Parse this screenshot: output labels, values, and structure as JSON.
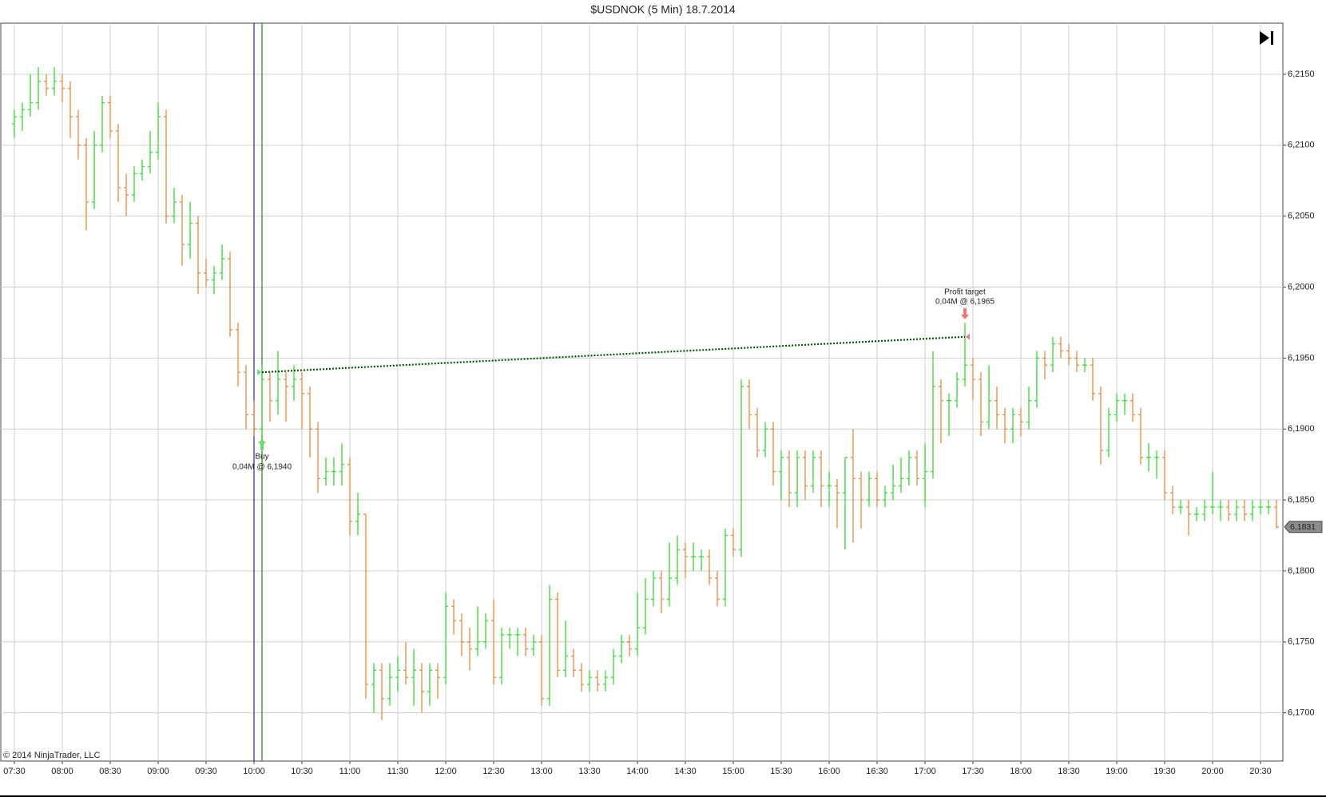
{
  "chart_data": {
    "type": "ohlc",
    "title": "$USDNOK (5 Min)  18.7.2014",
    "copyright": "© 2014 NinjaTrader, LLC",
    "up_color": "#33dd33",
    "down_color": "#e8883a",
    "grid": true,
    "ylim": [
      6.1666,
      6.2186
    ],
    "yticks": [
      {
        "value": 6.17,
        "label": "6,1700"
      },
      {
        "value": 6.175,
        "label": "6,1750"
      },
      {
        "value": 6.18,
        "label": "6,1800"
      },
      {
        "value": 6.185,
        "label": "6,1850"
      },
      {
        "value": 6.19,
        "label": "6,1900"
      },
      {
        "value": 6.195,
        "label": "6,1950"
      },
      {
        "value": 6.2,
        "label": "6,2000"
      },
      {
        "value": 6.205,
        "label": "6,2050"
      },
      {
        "value": 6.21,
        "label": "6,2100"
      },
      {
        "value": 6.215,
        "label": "6,2150"
      }
    ],
    "last_price": {
      "value": 6.1831,
      "label": "6,1831"
    },
    "vlines": [
      {
        "bar": 30,
        "color": "#2222cc"
      },
      {
        "bar": 31,
        "color": "#1a8a1a"
      }
    ],
    "entry": {
      "label": "Buy",
      "text": "0,04M @ 6,1940",
      "price": 6.194,
      "bar": 31,
      "color": "#66dd66"
    },
    "exit": {
      "label": "Profit target",
      "text": "0,04M @ 6,1965",
      "price": 6.1965,
      "bar": 119,
      "color": "#ee7777"
    },
    "trade_line_color": "#005500",
    "categories": [
      "07:30",
      null,
      null,
      null,
      null,
      null,
      "08:00",
      null,
      null,
      null,
      null,
      null,
      "08:30",
      null,
      null,
      null,
      null,
      null,
      "09:00",
      null,
      null,
      null,
      null,
      null,
      "09:30",
      null,
      null,
      null,
      null,
      null,
      "10:00",
      null,
      null,
      null,
      null,
      null,
      "10:30",
      null,
      null,
      null,
      null,
      null,
      "11:00",
      null,
      null,
      null,
      null,
      null,
      "11:30",
      null,
      null,
      null,
      null,
      null,
      "12:00",
      null,
      null,
      null,
      null,
      null,
      "12:30",
      null,
      null,
      null,
      null,
      null,
      "13:00",
      null,
      null,
      null,
      null,
      null,
      "13:30",
      null,
      null,
      null,
      null,
      null,
      "14:00",
      null,
      null,
      null,
      null,
      null,
      "14:30",
      null,
      null,
      null,
      null,
      null,
      "15:00",
      null,
      null,
      null,
      null,
      null,
      "15:30",
      null,
      null,
      null,
      null,
      null,
      "16:00",
      null,
      null,
      null,
      null,
      null,
      "16:30",
      null,
      null,
      null,
      null,
      null,
      "17:00",
      null,
      null,
      null,
      null,
      null,
      "17:30",
      null,
      null,
      null,
      null,
      null,
      "18:00",
      null,
      null,
      null,
      null,
      null,
      "18:30",
      null,
      null,
      null,
      null,
      null,
      "19:00",
      null,
      null,
      null,
      null,
      null,
      "19:30",
      null,
      null,
      null,
      null,
      null,
      "20:00",
      null,
      null,
      null,
      null,
      null,
      "20:30",
      null,
      null
    ],
    "bars": [
      [
        6.2115,
        6.2125,
        6.2105,
        6.212
      ],
      [
        6.212,
        6.213,
        6.211,
        6.2125
      ],
      [
        6.2125,
        6.215,
        6.212,
        6.213
      ],
      [
        6.213,
        6.2155,
        6.2125,
        6.2145
      ],
      [
        6.2145,
        6.215,
        6.2135,
        6.214
      ],
      [
        6.214,
        6.2155,
        6.2135,
        6.2145
      ],
      [
        6.2145,
        6.215,
        6.213,
        6.214
      ],
      [
        6.214,
        6.2145,
        6.2105,
        6.212
      ],
      [
        6.212,
        6.2125,
        6.209,
        6.21
      ],
      [
        6.21,
        6.2105,
        6.204,
        6.206
      ],
      [
        6.206,
        6.211,
        6.2055,
        6.21
      ],
      [
        6.21,
        6.2135,
        6.2095,
        6.213
      ],
      [
        6.213,
        6.2135,
        6.2105,
        6.211
      ],
      [
        6.211,
        6.2115,
        6.206,
        6.207
      ],
      [
        6.207,
        6.208,
        6.205,
        6.2065
      ],
      [
        6.2065,
        6.2085,
        6.206,
        6.208
      ],
      [
        6.208,
        6.209,
        6.2075,
        6.2085
      ],
      [
        6.2085,
        6.211,
        6.208,
        6.2095
      ],
      [
        6.2095,
        6.213,
        6.209,
        6.212
      ],
      [
        6.212,
        6.2125,
        6.2045,
        6.205
      ],
      [
        6.205,
        6.207,
        6.2045,
        6.206
      ],
      [
        6.206,
        6.2065,
        6.2015,
        6.203
      ],
      [
        6.203,
        6.206,
        6.202,
        6.2045
      ],
      [
        6.2045,
        6.205,
        6.1995,
        6.201
      ],
      [
        6.201,
        6.202,
        6.2,
        6.2005
      ],
      [
        6.2005,
        6.2015,
        6.1995,
        6.201
      ],
      [
        6.201,
        6.203,
        6.2005,
        6.202
      ],
      [
        6.202,
        6.2025,
        6.1965,
        6.197
      ],
      [
        6.197,
        6.1975,
        6.193,
        6.194
      ],
      [
        6.194,
        6.1945,
        6.19,
        6.191
      ],
      [
        6.191,
        6.192,
        6.1895,
        6.19
      ],
      [
        6.19,
        6.1945,
        6.1895,
        6.1935
      ],
      [
        6.1935,
        6.194,
        6.1905,
        6.192
      ],
      [
        6.192,
        6.1955,
        6.191,
        6.1935
      ],
      [
        6.1935,
        6.194,
        6.1905,
        6.193
      ],
      [
        6.193,
        6.1945,
        6.192,
        6.1935
      ],
      [
        6.1935,
        6.194,
        6.19,
        6.1925
      ],
      [
        6.1925,
        6.193,
        6.188,
        6.19
      ],
      [
        6.19,
        6.1905,
        6.1855,
        6.1865
      ],
      [
        6.1865,
        6.188,
        6.186,
        6.187
      ],
      [
        6.187,
        6.188,
        6.186,
        6.187
      ],
      [
        6.187,
        6.189,
        6.186,
        6.1875
      ],
      [
        6.1875,
        6.188,
        6.1825,
        6.1835
      ],
      [
        6.1835,
        6.1855,
        6.1825,
        6.184
      ],
      [
        6.184,
        6.184,
        6.171,
        6.172
      ],
      [
        6.172,
        6.1735,
        6.17,
        6.173
      ],
      [
        6.173,
        6.1735,
        6.1695,
        6.171
      ],
      [
        6.171,
        6.1735,
        6.1705,
        6.1725
      ],
      [
        6.1725,
        6.174,
        6.1715,
        6.173
      ],
      [
        6.173,
        6.175,
        6.172,
        6.1725
      ],
      [
        6.1725,
        6.1745,
        6.1705,
        6.173
      ],
      [
        6.173,
        6.1735,
        6.17,
        6.1715
      ],
      [
        6.1715,
        6.1735,
        6.1705,
        6.173
      ],
      [
        6.173,
        6.1735,
        6.171,
        6.1725
      ],
      [
        6.1725,
        6.1785,
        6.172,
        6.1775
      ],
      [
        6.1775,
        6.178,
        6.1755,
        6.1765
      ],
      [
        6.1765,
        6.177,
        6.174,
        6.175
      ],
      [
        6.175,
        6.176,
        6.173,
        6.1745
      ],
      [
        6.1745,
        6.1775,
        6.174,
        6.175
      ],
      [
        6.175,
        6.177,
        6.1745,
        6.1765
      ],
      [
        6.1765,
        6.178,
        6.172,
        6.1725
      ],
      [
        6.1725,
        6.176,
        6.172,
        6.1755
      ],
      [
        6.1755,
        6.176,
        6.1745,
        6.1755
      ],
      [
        6.1755,
        6.176,
        6.174,
        6.1755
      ],
      [
        6.1755,
        6.176,
        6.174,
        6.1745
      ],
      [
        6.1745,
        6.1755,
        6.174,
        6.175
      ],
      [
        6.175,
        6.1755,
        6.1705,
        6.171
      ],
      [
        6.171,
        6.179,
        6.1705,
        6.178
      ],
      [
        6.178,
        6.1785,
        6.1725,
        6.173
      ],
      [
        6.173,
        6.1765,
        6.1725,
        6.174
      ],
      [
        6.174,
        6.1745,
        6.1725,
        6.173
      ],
      [
        6.173,
        6.1735,
        6.1715,
        6.172
      ],
      [
        6.172,
        6.173,
        6.1715,
        6.1725
      ],
      [
        6.1725,
        6.173,
        6.1715,
        6.172
      ],
      [
        6.172,
        6.173,
        6.1715,
        6.1725
      ],
      [
        6.1725,
        6.1745,
        6.172,
        6.174
      ],
      [
        6.174,
        6.1755,
        6.1735,
        6.175
      ],
      [
        6.175,
        6.1755,
        6.174,
        6.1745
      ],
      [
        6.1745,
        6.1785,
        6.174,
        6.176
      ],
      [
        6.176,
        6.1795,
        6.1755,
        6.178
      ],
      [
        6.178,
        6.18,
        6.1775,
        6.1795
      ],
      [
        6.1795,
        6.18,
        6.177,
        6.178
      ],
      [
        6.178,
        6.182,
        6.1775,
        6.1795
      ],
      [
        6.1795,
        6.1825,
        6.179,
        6.1815
      ],
      [
        6.1815,
        6.182,
        6.1795,
        6.181
      ],
      [
        6.181,
        6.182,
        6.18,
        6.181
      ],
      [
        6.181,
        6.1815,
        6.18,
        6.181
      ],
      [
        6.181,
        6.1815,
        6.179,
        6.1795
      ],
      [
        6.1795,
        6.18,
        6.1775,
        6.178
      ],
      [
        6.178,
        6.183,
        6.1775,
        6.1825
      ],
      [
        6.1825,
        6.183,
        6.181,
        6.1815
      ],
      [
        6.1815,
        6.1935,
        6.181,
        6.193
      ],
      [
        6.193,
        6.1935,
        6.19,
        6.191
      ],
      [
        6.191,
        6.1915,
        6.188,
        6.1885
      ],
      [
        6.1885,
        6.1905,
        6.188,
        6.19
      ],
      [
        6.19,
        6.1905,
        6.186,
        6.187
      ],
      [
        6.187,
        6.1885,
        6.185,
        6.188
      ],
      [
        6.188,
        6.1885,
        6.1845,
        6.1855
      ],
      [
        6.1855,
        6.1885,
        6.1845,
        6.188
      ],
      [
        6.188,
        6.1885,
        6.185,
        6.186
      ],
      [
        6.186,
        6.1885,
        6.1855,
        6.188
      ],
      [
        6.188,
        6.1885,
        6.1845,
        6.186
      ],
      [
        6.186,
        6.187,
        6.1845,
        6.186
      ],
      [
        6.186,
        6.1865,
        6.183,
        6.1855
      ],
      [
        6.1855,
        6.188,
        6.1815,
        6.188
      ],
      [
        6.188,
        6.19,
        6.182,
        6.1865
      ],
      [
        6.1865,
        6.187,
        6.183,
        6.185
      ],
      [
        6.185,
        6.187,
        6.1845,
        6.1865
      ],
      [
        6.1865,
        6.187,
        6.1845,
        6.185
      ],
      [
        6.185,
        6.186,
        6.1845,
        6.1855
      ],
      [
        6.1855,
        6.1875,
        6.185,
        6.186
      ],
      [
        6.186,
        6.188,
        6.1855,
        6.1865
      ],
      [
        6.1865,
        6.1885,
        6.186,
        6.188
      ],
      [
        6.188,
        6.1885,
        6.186,
        6.1865
      ],
      [
        6.1865,
        6.189,
        6.1845,
        6.187
      ],
      [
        6.187,
        6.1955,
        6.1865,
        6.193
      ],
      [
        6.193,
        6.1935,
        6.189,
        6.192
      ],
      [
        6.192,
        6.1925,
        6.1895,
        6.192
      ],
      [
        6.192,
        6.194,
        6.1915,
        6.1935
      ],
      [
        6.1935,
        6.1975,
        6.193,
        6.1945
      ],
      [
        6.1945,
        6.195,
        6.192,
        6.1935
      ],
      [
        6.1935,
        6.194,
        6.1895,
        6.1905
      ],
      [
        6.1905,
        6.1945,
        6.19,
        6.192
      ],
      [
        6.192,
        6.193,
        6.19,
        6.191
      ],
      [
        6.191,
        6.1915,
        6.189,
        6.19
      ],
      [
        6.19,
        6.1915,
        6.189,
        6.191
      ],
      [
        6.191,
        6.1915,
        6.1895,
        6.1905
      ],
      [
        6.1905,
        6.193,
        6.19,
        6.192
      ],
      [
        6.192,
        6.1955,
        6.1915,
        6.195
      ],
      [
        6.195,
        6.1955,
        6.1935,
        6.1945
      ],
      [
        6.1945,
        6.1965,
        6.194,
        6.196
      ],
      [
        6.196,
        6.1965,
        6.195,
        6.1955
      ],
      [
        6.1955,
        6.196,
        6.1945,
        6.195
      ],
      [
        6.195,
        6.1955,
        6.194,
        6.1945
      ],
      [
        6.1945,
        6.195,
        6.194,
        6.1945
      ],
      [
        6.1945,
        6.195,
        6.192,
        6.1925
      ],
      [
        6.1925,
        6.193,
        6.1875,
        6.1885
      ],
      [
        6.1885,
        6.1915,
        6.188,
        6.191
      ],
      [
        6.191,
        6.1925,
        6.1905,
        6.192
      ],
      [
        6.192,
        6.1925,
        6.191,
        6.192
      ],
      [
        6.192,
        6.1925,
        6.1905,
        6.191
      ],
      [
        6.191,
        6.1915,
        6.1875,
        6.188
      ],
      [
        6.188,
        6.189,
        6.187,
        6.188
      ],
      [
        6.188,
        6.1885,
        6.1865,
        6.188
      ],
      [
        6.188,
        6.1885,
        6.185,
        6.1855
      ],
      [
        6.1855,
        6.186,
        6.184,
        6.1845
      ],
      [
        6.1845,
        6.185,
        6.184,
        6.1845
      ],
      [
        6.1845,
        6.185,
        6.1825,
        6.184
      ],
      [
        6.184,
        6.1845,
        6.1835,
        6.184
      ],
      [
        6.184,
        6.185,
        6.1835,
        6.1845
      ],
      [
        6.1845,
        6.187,
        6.184,
        6.1845
      ],
      [
        6.1845,
        6.185,
        6.1835,
        6.1845
      ],
      [
        6.1845,
        6.185,
        6.1835,
        6.184
      ],
      [
        6.184,
        6.185,
        6.1835,
        6.1845
      ],
      [
        6.1845,
        6.185,
        6.1835,
        6.184
      ],
      [
        6.184,
        6.185,
        6.1835,
        6.1845
      ],
      [
        6.1845,
        6.185,
        6.184,
        6.1845
      ],
      [
        6.1845,
        6.185,
        6.184,
        6.1845
      ],
      [
        6.1845,
        6.185,
        6.183,
        6.1831
      ]
    ]
  }
}
